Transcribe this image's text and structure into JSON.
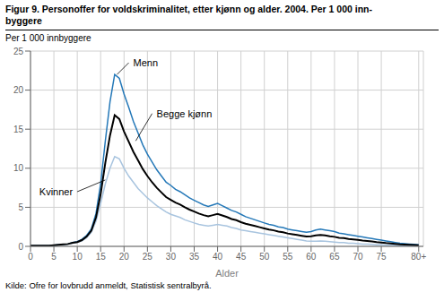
{
  "chart_data": {
    "type": "line",
    "title": "Figur 9. Personoffer for voldskriminalitet, etter kjønn og alder. 2004. Per 1 000 inn-\nbyggere",
    "y_label": "Per 1 000 innbyggere",
    "x_label": "Alder",
    "source": "Kilde: Ofre for lovbrudd anmeldt, Statistisk sentralbyrå.",
    "x": [
      0,
      1,
      2,
      3,
      4,
      5,
      6,
      7,
      8,
      9,
      10,
      11,
      12,
      13,
      14,
      15,
      16,
      17,
      18,
      19,
      20,
      21,
      22,
      23,
      24,
      25,
      26,
      27,
      28,
      29,
      30,
      31,
      32,
      33,
      34,
      35,
      36,
      37,
      38,
      39,
      40,
      41,
      42,
      43,
      44,
      45,
      46,
      47,
      48,
      49,
      50,
      51,
      52,
      53,
      54,
      55,
      56,
      57,
      58,
      59,
      60,
      61,
      62,
      63,
      64,
      65,
      66,
      67,
      68,
      69,
      70,
      71,
      72,
      73,
      74,
      75,
      76,
      77,
      78,
      79,
      80,
      81,
      82,
      83
    ],
    "series": [
      {
        "name": "Menn",
        "color": "#2478b8",
        "values": [
          0.1,
          0.1,
          0.1,
          0.1,
          0.1,
          0.15,
          0.2,
          0.25,
          0.3,
          0.5,
          0.6,
          0.9,
          1.4,
          2.2,
          4.2,
          8.0,
          13.5,
          18.5,
          22.0,
          21.5,
          19.5,
          17.8,
          16.0,
          14.5,
          13.0,
          11.8,
          10.8,
          9.8,
          9.0,
          8.2,
          7.8,
          7.3,
          7.0,
          6.6,
          6.2,
          5.9,
          5.6,
          5.3,
          5.1,
          5.3,
          5.5,
          5.2,
          4.9,
          4.6,
          4.4,
          4.1,
          3.8,
          3.6,
          3.4,
          3.2,
          3.0,
          2.8,
          2.7,
          2.5,
          2.4,
          2.2,
          2.1,
          2.0,
          1.9,
          1.8,
          1.9,
          2.1,
          2.2,
          2.1,
          2.0,
          1.9,
          1.7,
          1.6,
          1.5,
          1.4,
          1.3,
          1.2,
          1.1,
          1.0,
          0.9,
          0.8,
          0.7,
          0.6,
          0.5,
          0.4,
          0.35,
          0.3,
          0.25,
          0.2
        ]
      },
      {
        "name": "Kvinner",
        "color": "#a8c4df",
        "values": [
          0.1,
          0.1,
          0.1,
          0.1,
          0.1,
          0.15,
          0.2,
          0.25,
          0.3,
          0.4,
          0.5,
          0.7,
          1.1,
          1.8,
          3.2,
          5.5,
          8.0,
          10.0,
          11.5,
          11.2,
          10.0,
          9.0,
          8.2,
          7.4,
          6.8,
          6.2,
          5.7,
          5.2,
          4.8,
          4.4,
          4.1,
          3.9,
          3.7,
          3.4,
          3.2,
          3.0,
          2.8,
          2.7,
          2.6,
          2.7,
          2.8,
          2.7,
          2.6,
          2.4,
          2.3,
          2.1,
          2.0,
          1.9,
          1.8,
          1.7,
          1.6,
          1.5,
          1.4,
          1.3,
          1.2,
          1.1,
          1.0,
          0.9,
          0.8,
          0.7,
          0.65,
          0.65,
          0.7,
          0.65,
          0.6,
          0.55,
          0.5,
          0.5,
          0.4,
          0.4,
          0.35,
          0.3,
          0.3,
          0.25,
          0.2,
          0.2,
          0.15,
          0.15,
          0.15,
          0.1,
          0.1,
          0.1,
          0.1,
          0.1
        ]
      },
      {
        "name": "Begge kjønn",
        "color": "#000000",
        "values": [
          0.1,
          0.1,
          0.1,
          0.1,
          0.1,
          0.15,
          0.2,
          0.25,
          0.3,
          0.45,
          0.55,
          0.8,
          1.25,
          2.0,
          3.7,
          6.7,
          10.7,
          14.2,
          16.8,
          16.3,
          14.7,
          13.4,
          12.1,
          11.0,
          9.9,
          9.0,
          8.2,
          7.5,
          6.9,
          6.3,
          5.95,
          5.6,
          5.35,
          5.0,
          4.7,
          4.45,
          4.2,
          4.0,
          3.85,
          4.0,
          4.15,
          3.95,
          3.75,
          3.5,
          3.35,
          3.1,
          2.9,
          2.75,
          2.6,
          2.45,
          2.3,
          2.15,
          2.05,
          1.9,
          1.8,
          1.65,
          1.55,
          1.45,
          1.35,
          1.25,
          1.28,
          1.4,
          1.45,
          1.4,
          1.3,
          1.22,
          1.1,
          1.05,
          0.95,
          0.9,
          0.82,
          0.75,
          0.7,
          0.62,
          0.55,
          0.5,
          0.42,
          0.38,
          0.32,
          0.25,
          0.22,
          0.2,
          0.18,
          0.15
        ]
      }
    ],
    "xlim": [
      0,
      84
    ],
    "ylim": [
      0,
      25
    ],
    "xticks": [
      0,
      5,
      10,
      15,
      20,
      25,
      30,
      35,
      40,
      45,
      50,
      55,
      60,
      65,
      70,
      75,
      {
        "value": 83,
        "label": "80+"
      }
    ],
    "yticks": [
      0,
      5,
      10,
      15,
      20,
      25
    ],
    "grid": true,
    "annotations": [
      {
        "text": "Menn",
        "x": 21,
        "y": 23.5,
        "arrow_x": 18.5,
        "arrow_y": 22.0
      },
      {
        "text": "Kvinner",
        "x": 10,
        "y": 7.0,
        "arrow_x": 16,
        "arrow_y": 8.5
      },
      {
        "text": "Begge kjønn",
        "x": 26,
        "y": 17.0,
        "arrow_x": 22.5,
        "arrow_y": 13.5
      }
    ]
  }
}
